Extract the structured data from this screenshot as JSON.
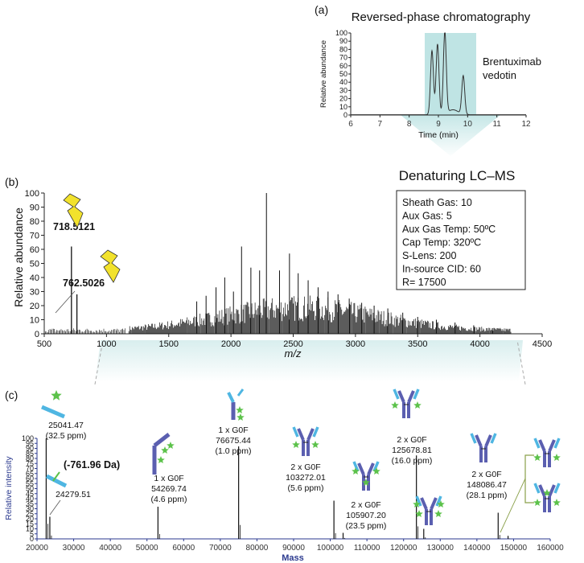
{
  "panels": {
    "a": {
      "label": "(a)",
      "title": "Reversed-phase chromatography",
      "ylabel": "Relative abundance",
      "xlabel": "Time (min)",
      "annotation_line1": "Brentuximab",
      "annotation_line2": "vedotin"
    },
    "b": {
      "label": "(b)",
      "title": "Denaturing LC–MS",
      "ylabel": "Relative abundance",
      "xlabel": "m/z",
      "settings": [
        "Sheath Gas: 10",
        "Aux Gas: 5",
        "Aux Gas Temp: 50ºC",
        "Cap Temp: 320ºC",
        "S-Lens: 200",
        "In-source CID: 60",
        "R= 17500"
      ]
    },
    "c": {
      "label": "(c)",
      "ylabel": "Relative intensity",
      "xlabel": "Mass",
      "delta_label": "(-761.96 Da)"
    }
  },
  "colors": {
    "heavy_chain": "#5b5fb0",
    "light_chain": "#4fb6e2",
    "glycan_star": "#5cc24a",
    "bolt": "#f2e22c",
    "shade": "#bfe4e4",
    "axis_blue": "#2b3a8f"
  },
  "chart_data": [
    {
      "panel": "a",
      "type": "line",
      "title": "Reversed-phase chromatography",
      "xlabel": "Time (min)",
      "ylabel": "Relative abundance",
      "xlim": [
        6,
        12
      ],
      "ylim": [
        0,
        100
      ],
      "x_ticks": [
        6,
        7,
        8,
        9,
        10,
        11,
        12
      ],
      "y_ticks": [
        0,
        10,
        20,
        30,
        40,
        50,
        60,
        70,
        80,
        90,
        100
      ],
      "shaded_range": [
        8.5,
        10.3
      ],
      "peaks": [
        {
          "x": 8.78,
          "y": 78
        },
        {
          "x": 8.97,
          "y": 86
        },
        {
          "x": 9.22,
          "y": 100
        },
        {
          "x": 9.85,
          "y": 47
        }
      ],
      "annotation": "Brentuximab vedotin"
    },
    {
      "panel": "b",
      "type": "bar",
      "title": "Denaturing LC–MS",
      "xlabel": "m/z",
      "ylabel": "Relative abundance",
      "xlim": [
        500,
        4500
      ],
      "ylim": [
        0,
        100
      ],
      "x_ticks": [
        500,
        1000,
        1500,
        2000,
        2500,
        3000,
        3500,
        4000,
        4500
      ],
      "y_ticks": [
        0,
        10,
        20,
        30,
        40,
        50,
        60,
        70,
        80,
        90,
        100
      ],
      "labeled_peaks": [
        {
          "x": 718.5121,
          "y": 62,
          "label": "718.5121"
        },
        {
          "x": 762.5026,
          "y": 28,
          "label": "762.5026"
        }
      ],
      "major_peaks": [
        {
          "x": 1725,
          "y": 23
        },
        {
          "x": 1800,
          "y": 27
        },
        {
          "x": 1880,
          "y": 33
        },
        {
          "x": 1950,
          "y": 40
        },
        {
          "x": 2020,
          "y": 30
        },
        {
          "x": 2085,
          "y": 62
        },
        {
          "x": 2160,
          "y": 47
        },
        {
          "x": 2230,
          "y": 45
        },
        {
          "x": 2285,
          "y": 100
        },
        {
          "x": 2390,
          "y": 45
        },
        {
          "x": 2470,
          "y": 57
        },
        {
          "x": 2540,
          "y": 43
        },
        {
          "x": 2620,
          "y": 38
        },
        {
          "x": 2700,
          "y": 33
        },
        {
          "x": 2780,
          "y": 30
        },
        {
          "x": 2860,
          "y": 28
        },
        {
          "x": 2950,
          "y": 25
        },
        {
          "x": 3050,
          "y": 22
        },
        {
          "x": 3150,
          "y": 20
        },
        {
          "x": 3260,
          "y": 18
        },
        {
          "x": 3380,
          "y": 15
        },
        {
          "x": 3500,
          "y": 12
        },
        {
          "x": 3650,
          "y": 10
        },
        {
          "x": 3800,
          "y": 8
        },
        {
          "x": 3950,
          "y": 6
        },
        {
          "x": 4100,
          "y": 4
        }
      ],
      "settings": [
        "Sheath Gas: 10",
        "Aux Gas: 5",
        "Aux Gas Temp: 50ºC",
        "Cap Temp: 320ºC",
        "S-Lens: 200",
        "In-source CID: 60",
        "R= 17500"
      ]
    },
    {
      "panel": "c",
      "type": "bar",
      "xlabel": "Mass",
      "ylabel": "Relative intensity",
      "xlim": [
        20000,
        160000
      ],
      "ylim": [
        0,
        100
      ],
      "x_ticks": [
        20000,
        30000,
        40000,
        50000,
        60000,
        70000,
        80000,
        90000,
        100000,
        110000,
        120000,
        130000,
        140000,
        150000,
        160000
      ],
      "y_ticks": [
        0,
        5,
        10,
        15,
        20,
        25,
        30,
        35,
        40,
        45,
        50,
        55,
        60,
        65,
        70,
        75,
        80,
        85,
        90,
        95,
        100
      ],
      "peaks": [
        {
          "mass": 22500,
          "y": 100,
          "name": "",
          "lines": [
            "25041.47",
            "(32.5 ppm)"
          ]
        },
        {
          "mass": 23500,
          "y": 22,
          "name": "",
          "lines": [
            "24279.51"
          ]
        },
        {
          "mass": 53000,
          "y": 32,
          "name": "1 x G0F",
          "lines": [
            "54269.74",
            "(4.6 ppm)"
          ]
        },
        {
          "mass": 75000,
          "y": 92,
          "name": "1 x G0F",
          "lines": [
            "76675.44",
            "(1.0 ppm)"
          ]
        },
        {
          "mass": 101000,
          "y": 38,
          "name": "2 x G0F",
          "lines": [
            "103272.01",
            "(5.6 ppm)"
          ]
        },
        {
          "mass": 103500,
          "y": 6,
          "name": "2 x G0F",
          "lines": [
            "105907.20",
            "(23.5 ppm)"
          ]
        },
        {
          "mass": 123500,
          "y": 83,
          "name": "2 x G0F",
          "lines": [
            "125678.81",
            "(16.0 ppm)"
          ]
        },
        {
          "mass": 125500,
          "y": 10,
          "name": "",
          "lines": []
        },
        {
          "mass": 145800,
          "y": 26,
          "name": "2 x G0F",
          "lines": [
            "148086.47",
            "(28.1 ppm)"
          ]
        },
        {
          "mass": 148500,
          "y": 3,
          "name": "",
          "lines": []
        }
      ]
    }
  ]
}
